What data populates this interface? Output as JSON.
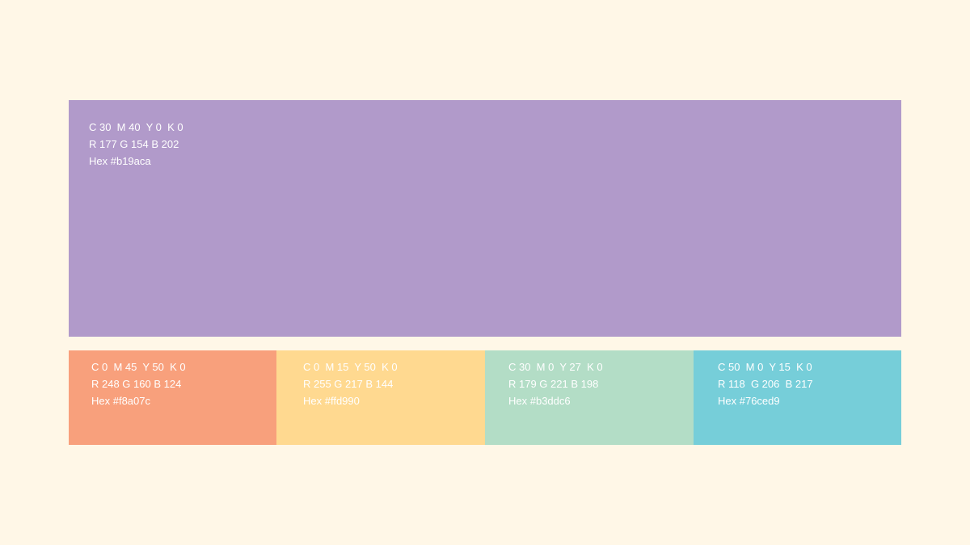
{
  "main_swatch": {
    "cmyk": "C 30  M 40  Y 0  K 0",
    "rgb": "R 177 G 154 B 202",
    "hex": "Hex #b19aca",
    "color": "#b19aca"
  },
  "swatches": [
    {
      "cmyk": "C 0  M 45  Y 50  K 0",
      "rgb": "R 248 G 160 B 124",
      "hex": "Hex #f8a07c",
      "color": "#f8a07c"
    },
    {
      "cmyk": "C 0  M 15  Y 50  K 0",
      "rgb": "R 255 G 217 B 144",
      "hex": "Hex #ffd990",
      "color": "#ffd990"
    },
    {
      "cmyk": "C 30  M 0  Y 27  K 0",
      "rgb": "R 179 G 221 B 198",
      "hex": "Hex #b3ddc6",
      "color": "#b3ddc6"
    },
    {
      "cmyk": "C 50  M 0  Y 15  K 0",
      "rgb": "R 118  G 206  B 217",
      "hex": "Hex #76ced9",
      "color": "#76ced9"
    }
  ]
}
